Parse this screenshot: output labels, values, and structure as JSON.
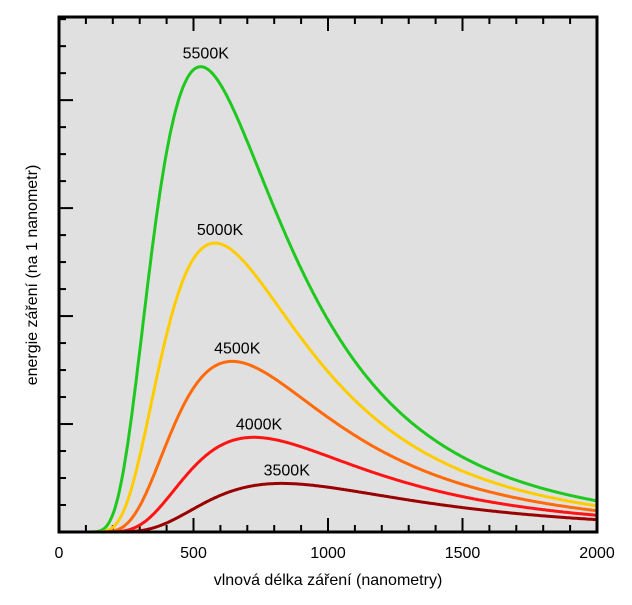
{
  "chart_data": {
    "type": "line",
    "title": "",
    "xlabel": "vlnová délka záření (nanometry)",
    "ylabel": "energie záření (na 1 nanometr)",
    "xlim": [
      0,
      2000
    ],
    "ylim": [
      0,
      4.77
    ],
    "x_ticks": [
      "0",
      "500",
      "1000",
      "1500",
      "2000"
    ],
    "x_minor_step": 100,
    "y_tick_labels": "none",
    "y_major_step": 1,
    "y_minor_step": 0.25,
    "grid": false,
    "background": "#e0e0e0",
    "model": "Planck black-body spectral radiance, arbitrary units",
    "series": [
      {
        "name": "5500K",
        "temperature": 5500,
        "peak_nm": 527,
        "peak_value": 4.31,
        "color": "#1fc81f"
      },
      {
        "name": "5000K",
        "temperature": 5000,
        "peak_nm": 580,
        "peak_value": 2.68,
        "color": "#ffcc00"
      },
      {
        "name": "4500K",
        "temperature": 4500,
        "peak_nm": 644,
        "peak_value": 1.58,
        "color": "#ff6a0a"
      },
      {
        "name": "4000K",
        "temperature": 4000,
        "peak_nm": 725,
        "peak_value": 0.88,
        "color": "#ff1414"
      },
      {
        "name": "3500K",
        "temperature": 3500,
        "peak_nm": 828,
        "peak_value": 0.45,
        "color": "#990000"
      }
    ]
  }
}
